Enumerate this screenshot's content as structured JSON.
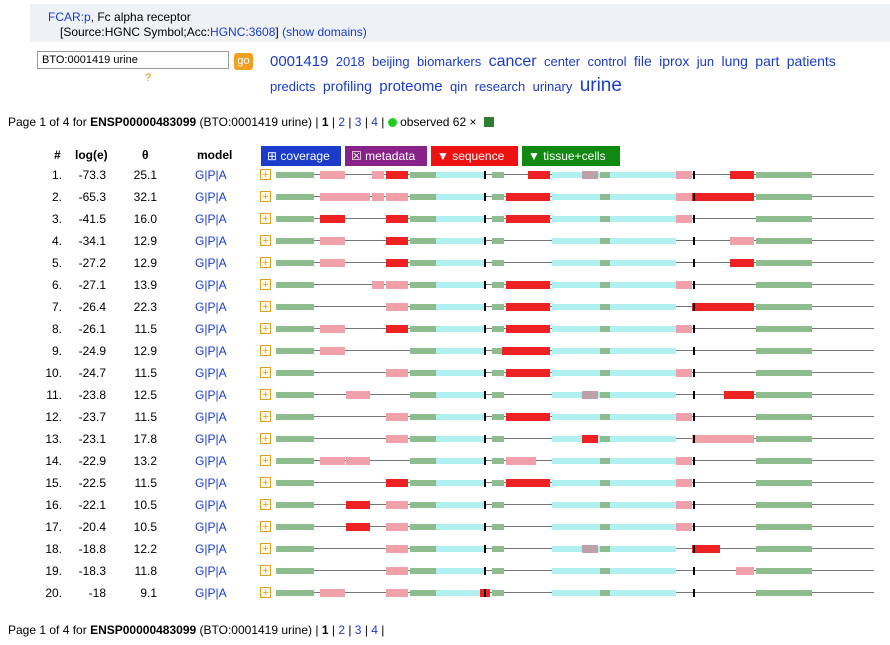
{
  "header": {
    "gene_link": "FCAR:p",
    "gene_desc": ", Fc alpha receptor",
    "source_prefix": "[Source:HGNC Symbol;Acc:",
    "source_acc": "HGNC:3608",
    "source_suffix": "]",
    "show_domains": "(show domains)"
  },
  "search": {
    "value": "BTO:0001419 urine",
    "go_label": "go",
    "help": "?"
  },
  "tag_cloud": [
    {
      "word": "0001419",
      "size": 15
    },
    {
      "word": "2018",
      "size": 13
    },
    {
      "word": "beijing",
      "size": 13
    },
    {
      "word": "biomarkers",
      "size": 13
    },
    {
      "word": "cancer",
      "size": 16
    },
    {
      "word": "center",
      "size": 13
    },
    {
      "word": "control",
      "size": 13
    },
    {
      "word": "file",
      "size": 14
    },
    {
      "word": "iprox",
      "size": 14
    },
    {
      "word": "jun",
      "size": 13
    },
    {
      "word": "lung",
      "size": 14
    },
    {
      "word": "part",
      "size": 14
    },
    {
      "word": "patients",
      "size": 14
    },
    {
      "word": "predicts",
      "size": 13
    },
    {
      "word": "profiling",
      "size": 14
    },
    {
      "word": "proteome",
      "size": 15
    },
    {
      "word": "qin",
      "size": 13
    },
    {
      "word": "research",
      "size": 13
    },
    {
      "word": "urinary",
      "size": 13
    },
    {
      "word": "urine",
      "size": 19
    }
  ],
  "pager": {
    "prefix": "Page 1 of 4 for",
    "protein": "ENSP00000483099",
    "context": "(BTO:0001419 urine)",
    "pages": [
      "1",
      "2",
      "3",
      "4"
    ],
    "observed": "observed 62 ×"
  },
  "columns": {
    "num": "#",
    "loge": "log(e)",
    "theta": "θ",
    "model": "model"
  },
  "tabs": {
    "coverage": "⊞ coverage",
    "metadata": "☒ metadata",
    "sequence": "▼ sequence",
    "tissue": "▼ tissue+cells"
  },
  "colors": {
    "green": "#8fbc8f",
    "cyan": "#b0f0f0",
    "pink": "#f0a0a8",
    "red": "#ee2222",
    "gray": "#c0a0a8",
    "tab_blue": "#1a3cc8",
    "tab_purple": "#882288",
    "tab_red": "#ee1111",
    "tab_green": "#118811"
  },
  "model_links": [
    "G",
    "P",
    "A"
  ],
  "rows": [
    {
      "n": "1.",
      "loge": "-73.3",
      "theta": "25.1"
    },
    {
      "n": "2.",
      "loge": "-65.3",
      "theta": "32.1"
    },
    {
      "n": "3.",
      "loge": "-41.5",
      "theta": "16.0"
    },
    {
      "n": "4.",
      "loge": "-34.1",
      "theta": "12.9"
    },
    {
      "n": "5.",
      "loge": "-27.2",
      "theta": "12.9"
    },
    {
      "n": "6.",
      "loge": "-27.1",
      "theta": "13.9"
    },
    {
      "n": "7.",
      "loge": "-26.4",
      "theta": "22.3"
    },
    {
      "n": "8.",
      "loge": "-26.1",
      "theta": "11.5"
    },
    {
      "n": "9.",
      "loge": "-24.9",
      "theta": "12.9"
    },
    {
      "n": "10.",
      "loge": "-24.7",
      "theta": "11.5"
    },
    {
      "n": "11.",
      "loge": "-23.8",
      "theta": "12.5"
    },
    {
      "n": "12.",
      "loge": "-23.7",
      "theta": "11.5"
    },
    {
      "n": "13.",
      "loge": "-23.1",
      "theta": "17.8"
    },
    {
      "n": "14.",
      "loge": "-22.9",
      "theta": "13.2"
    },
    {
      "n": "15.",
      "loge": "-22.5",
      "theta": "11.5"
    },
    {
      "n": "16.",
      "loge": "-22.1",
      "theta": "10.5"
    },
    {
      "n": "17.",
      "loge": "-20.4",
      "theta": "10.5"
    },
    {
      "n": "18.",
      "loge": "-18.8",
      "theta": "12.2"
    },
    {
      "n": "19.",
      "loge": "-18.3",
      "theta": "11.8"
    },
    {
      "n": "20.",
      "loge": "-18",
      "theta": "9.1"
    }
  ]
}
